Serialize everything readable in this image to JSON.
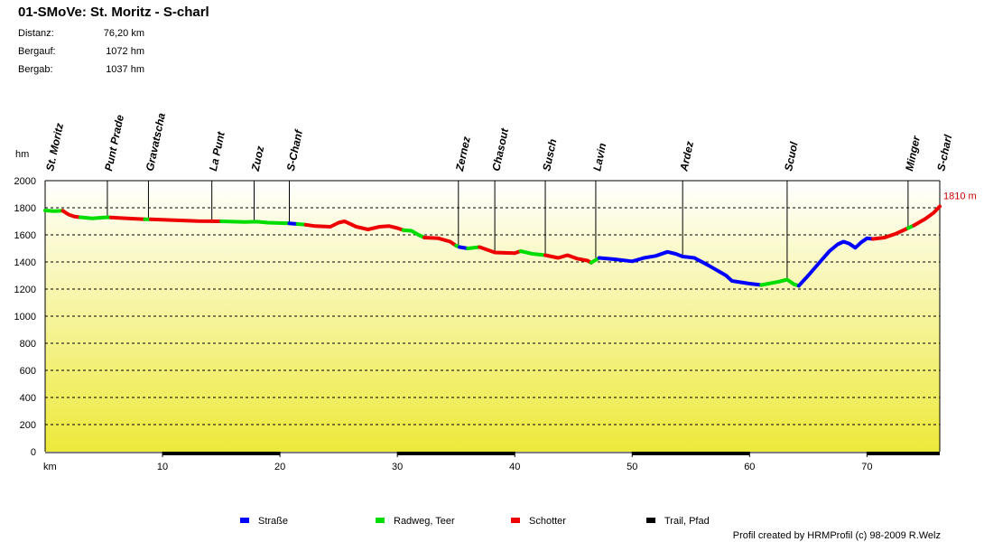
{
  "header": {
    "title": "01-SMoVe: St. Moritz - S-charl",
    "stats": [
      {
        "label": "Distanz:",
        "value": "76,20 km"
      },
      {
        "label": "Bergauf:",
        "value": "1072 hm"
      },
      {
        "label": "Bergab:",
        "value": "1037 hm"
      }
    ]
  },
  "credit": "Profil created by HRMProfil (c) 98-2009 R.Welz",
  "colors": {
    "strasse": "#0000ff",
    "radweg": "#00dd00",
    "schotter": "#ee0000",
    "trail": "#000000",
    "end_label": "#cc0000"
  },
  "chart_data": {
    "type": "line",
    "title": "01-SMoVe: St. Moritz - S-charl",
    "xlabel": "km",
    "ylabel": "hm",
    "xlim": [
      0,
      76.2
    ],
    "ylim": [
      0,
      2000
    ],
    "x_ticks": [
      10,
      20,
      30,
      40,
      50,
      60,
      70
    ],
    "y_ticks": [
      0,
      200,
      400,
      600,
      800,
      1000,
      1200,
      1400,
      1600,
      1800,
      2000
    ],
    "grid": "horizontal dashed",
    "end_label": "1810 m",
    "legend": [
      {
        "label": "Straße",
        "color": "#0000ff"
      },
      {
        "label": "Radweg, Teer",
        "color": "#00dd00"
      },
      {
        "label": "Schotter",
        "color": "#ee0000"
      },
      {
        "label": "Trail, Pfad",
        "color": "#000000"
      }
    ],
    "waypoints": [
      {
        "name": "St. Moritz",
        "km": 0.3
      },
      {
        "name": "Punt Prade",
        "km": 5.3
      },
      {
        "name": "Gravatscha",
        "km": 8.8
      },
      {
        "name": "La Punt",
        "km": 14.2
      },
      {
        "name": "Zuoz",
        "km": 17.8
      },
      {
        "name": "S-Chanf",
        "km": 20.8
      },
      {
        "name": "Zernez",
        "km": 35.2
      },
      {
        "name": "Chasout",
        "km": 38.3
      },
      {
        "name": "Susch",
        "km": 42.6
      },
      {
        "name": "Lavin",
        "km": 46.9
      },
      {
        "name": "Ardez",
        "km": 54.3
      },
      {
        "name": "Scuol",
        "km": 63.2
      },
      {
        "name": "Minger",
        "km": 73.5
      },
      {
        "name": "S-charl",
        "km": 76.2
      }
    ],
    "segments": [
      {
        "surface": "radweg",
        "points": [
          [
            0,
            1780
          ],
          [
            0.8,
            1775
          ],
          [
            1.5,
            1778
          ]
        ]
      },
      {
        "surface": "schotter",
        "points": [
          [
            1.5,
            1778
          ],
          [
            2.0,
            1750
          ],
          [
            2.5,
            1735
          ],
          [
            3.0,
            1730
          ]
        ]
      },
      {
        "surface": "radweg",
        "points": [
          [
            3.0,
            1730
          ],
          [
            4.0,
            1722
          ],
          [
            5.3,
            1730
          ],
          [
            5.6,
            1728
          ]
        ]
      },
      {
        "surface": "schotter",
        "points": [
          [
            5.6,
            1728
          ],
          [
            7.0,
            1722
          ],
          [
            8.5,
            1715
          ]
        ]
      },
      {
        "surface": "radweg",
        "points": [
          [
            8.5,
            1715
          ],
          [
            9.0,
            1715
          ]
        ]
      },
      {
        "surface": "schotter",
        "points": [
          [
            9.0,
            1715
          ],
          [
            11.0,
            1708
          ],
          [
            13.0,
            1702
          ],
          [
            15.0,
            1700
          ]
        ]
      },
      {
        "surface": "radweg",
        "points": [
          [
            15.0,
            1700
          ],
          [
            17.0,
            1695
          ],
          [
            18.0,
            1697
          ],
          [
            19.0,
            1690
          ],
          [
            20.8,
            1685
          ]
        ]
      },
      {
        "surface": "strasse",
        "points": [
          [
            20.8,
            1685
          ],
          [
            21.5,
            1680
          ]
        ]
      },
      {
        "surface": "radweg",
        "points": [
          [
            21.5,
            1680
          ],
          [
            22.2,
            1675
          ]
        ]
      },
      {
        "surface": "schotter",
        "points": [
          [
            22.2,
            1675
          ],
          [
            23.0,
            1665
          ],
          [
            24.3,
            1660
          ],
          [
            25.0,
            1690
          ],
          [
            25.5,
            1700
          ],
          [
            26.5,
            1660
          ],
          [
            27.5,
            1640
          ],
          [
            28.5,
            1660
          ],
          [
            29.3,
            1665
          ],
          [
            30.0,
            1650
          ],
          [
            30.5,
            1635
          ]
        ]
      },
      {
        "surface": "radweg",
        "points": [
          [
            30.5,
            1635
          ],
          [
            31.2,
            1630
          ],
          [
            31.8,
            1600
          ],
          [
            32.3,
            1580
          ]
        ]
      },
      {
        "surface": "schotter",
        "points": [
          [
            32.3,
            1580
          ],
          [
            33.5,
            1575
          ],
          [
            34.5,
            1550
          ],
          [
            35.0,
            1520
          ]
        ]
      },
      {
        "surface": "radweg",
        "points": [
          [
            35.0,
            1520
          ],
          [
            35.3,
            1510
          ]
        ]
      },
      {
        "surface": "strasse",
        "points": [
          [
            35.3,
            1510
          ],
          [
            36.0,
            1500
          ]
        ]
      },
      {
        "surface": "radweg",
        "points": [
          [
            36.0,
            1500
          ],
          [
            37.0,
            1510
          ]
        ]
      },
      {
        "surface": "schotter",
        "points": [
          [
            37.0,
            1510
          ],
          [
            38.3,
            1470
          ],
          [
            40.0,
            1465
          ],
          [
            40.5,
            1480
          ]
        ]
      },
      {
        "surface": "radweg",
        "points": [
          [
            40.5,
            1480
          ],
          [
            41.5,
            1460
          ],
          [
            42.6,
            1450
          ]
        ]
      },
      {
        "surface": "schotter",
        "points": [
          [
            42.6,
            1450
          ],
          [
            43.7,
            1430
          ],
          [
            44.5,
            1450
          ],
          [
            45.3,
            1425
          ],
          [
            46.2,
            1410
          ],
          [
            46.5,
            1395
          ]
        ]
      },
      {
        "surface": "radweg",
        "points": [
          [
            46.5,
            1395
          ],
          [
            47.2,
            1430
          ]
        ]
      },
      {
        "surface": "strasse",
        "points": [
          [
            47.2,
            1430
          ],
          [
            48.5,
            1420
          ],
          [
            50.0,
            1405
          ],
          [
            51.0,
            1430
          ],
          [
            52.0,
            1445
          ],
          [
            53.0,
            1475
          ],
          [
            53.7,
            1460
          ],
          [
            54.3,
            1440
          ],
          [
            55.3,
            1430
          ],
          [
            56.5,
            1375
          ],
          [
            58.0,
            1300
          ],
          [
            58.5,
            1260
          ],
          [
            60.0,
            1240
          ],
          [
            61.0,
            1230
          ]
        ]
      },
      {
        "surface": "radweg",
        "points": [
          [
            61.0,
            1230
          ],
          [
            62.5,
            1255
          ],
          [
            63.2,
            1270
          ],
          [
            63.8,
            1235
          ],
          [
            64.2,
            1225
          ]
        ]
      },
      {
        "surface": "strasse",
        "points": [
          [
            64.2,
            1225
          ],
          [
            65.0,
            1300
          ],
          [
            66.0,
            1400
          ],
          [
            66.8,
            1480
          ],
          [
            67.5,
            1530
          ],
          [
            68.0,
            1550
          ],
          [
            68.5,
            1535
          ],
          [
            69.0,
            1505
          ],
          [
            69.5,
            1545
          ],
          [
            70.0,
            1575
          ],
          [
            70.5,
            1570
          ]
        ]
      },
      {
        "surface": "schotter",
        "points": [
          [
            70.5,
            1570
          ],
          [
            71.5,
            1580
          ],
          [
            72.5,
            1610
          ],
          [
            73.5,
            1650
          ]
        ]
      },
      {
        "surface": "radweg",
        "points": [
          [
            73.5,
            1650
          ],
          [
            74.0,
            1670
          ]
        ]
      },
      {
        "surface": "schotter",
        "points": [
          [
            74.0,
            1670
          ],
          [
            75.0,
            1720
          ],
          [
            75.7,
            1765
          ],
          [
            76.2,
            1810
          ]
        ]
      }
    ],
    "trail_bars": [
      [
        10,
        20
      ],
      [
        30,
        40
      ],
      [
        50,
        60
      ],
      [
        70,
        76.2
      ]
    ]
  }
}
